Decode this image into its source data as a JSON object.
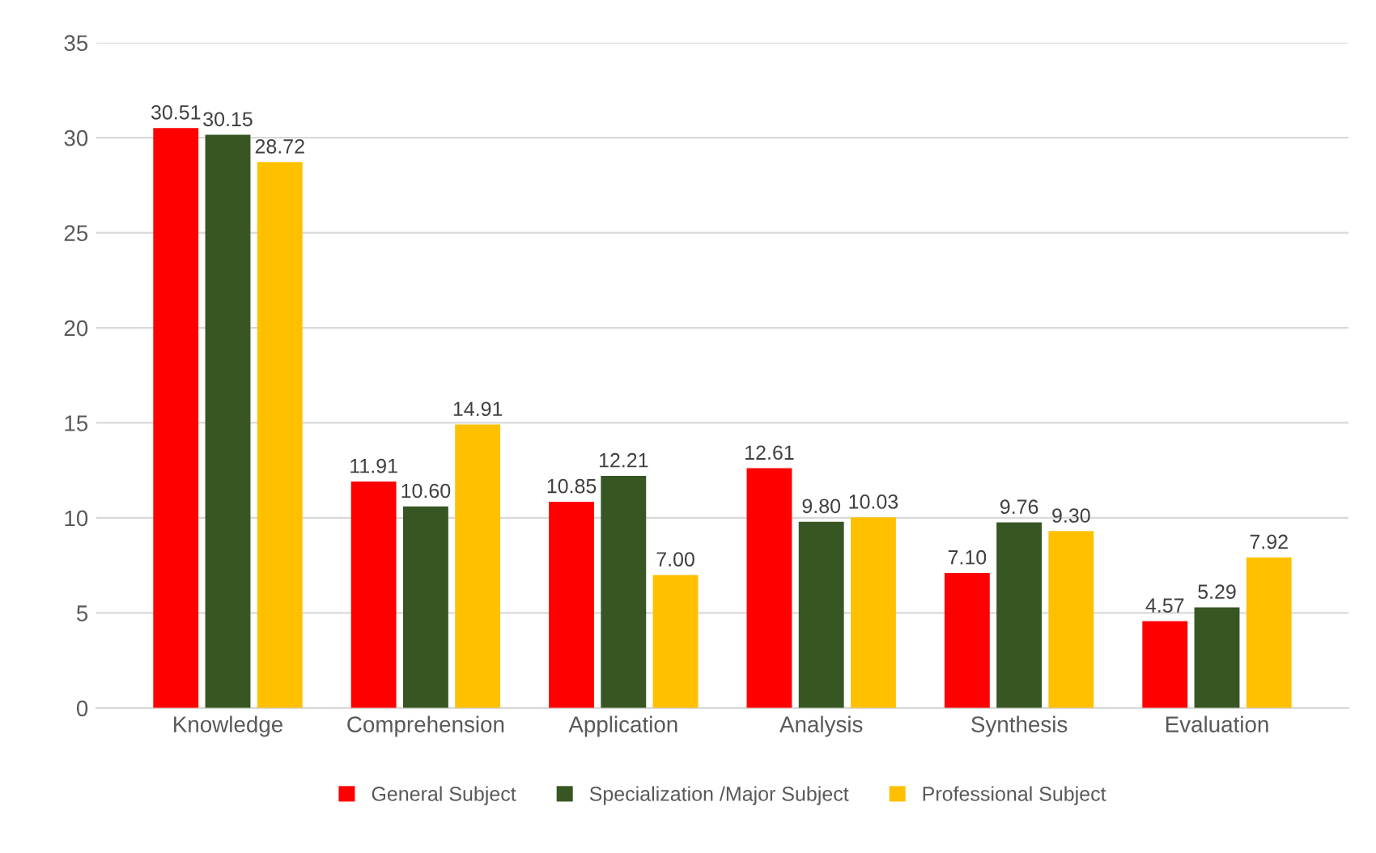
{
  "chart_data": {
    "type": "bar",
    "categories": [
      "Knowledge",
      "Comprehension",
      "Application",
      "Analysis",
      "Synthesis",
      "Evaluation"
    ],
    "series": [
      {
        "name": "General Subject",
        "color": "#ff0000",
        "values": [
          30.51,
          11.91,
          10.85,
          12.61,
          7.1,
          4.57
        ],
        "value_labels": [
          "30.51",
          "11.91",
          "10.85",
          "12.61",
          "7.10",
          "4.57"
        ]
      },
      {
        "name": "Specialization /Major Subject",
        "color": "#375623",
        "values": [
          30.15,
          10.6,
          12.21,
          9.8,
          9.76,
          5.29
        ],
        "value_labels": [
          "30.15",
          "10.60",
          "12.21",
          "9.80",
          "9.76",
          "5.29"
        ]
      },
      {
        "name": "Professional Subject",
        "color": "#ffc000",
        "values": [
          28.72,
          14.91,
          7.0,
          10.03,
          9.3,
          7.92
        ],
        "value_labels": [
          "28.72",
          "14.91",
          "7.00",
          "10.03",
          "9.30",
          "7.92"
        ]
      }
    ],
    "ylim": [
      0,
      35
    ],
    "yticks": [
      0,
      5,
      10,
      15,
      20,
      25,
      30,
      35
    ],
    "grid": "y",
    "legend": "bottom"
  }
}
